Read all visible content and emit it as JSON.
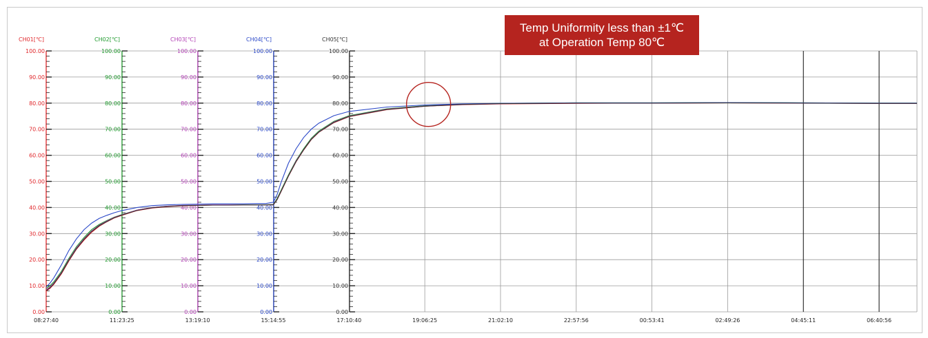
{
  "annotation": {
    "line1": "Temp Uniformity less than ±1℃",
    "line2": "at Operation Temp 80℃",
    "box_color": "#b5241f",
    "circle_color": "#b5241f"
  },
  "chart_data": {
    "type": "line",
    "title": "",
    "xlabel": "",
    "ylabel": "",
    "ylim": [
      0,
      100
    ],
    "grid": true,
    "x_tick_labels": [
      "08:27:40",
      "11:23:25",
      "13:19:10",
      "15:14:55",
      "17:10:40",
      "19:06:25",
      "21:02:10",
      "22:57:56",
      "00:53:41",
      "02:49:26",
      "04:45:11",
      "06:40:56"
    ],
    "y_axes": [
      {
        "name": "CH01[℃]",
        "color": "#e0262a",
        "ticks": [
          "0.00",
          "10.00",
          "20.00",
          "30.00",
          "40.00",
          "50.00",
          "60.00",
          "70.00",
          "80.00",
          "90.00",
          "100.00"
        ]
      },
      {
        "name": "CH02[℃]",
        "color": "#1f9a2d",
        "ticks": [
          "0.00",
          "10.00",
          "20.00",
          "30.00",
          "40.00",
          "50.00",
          "60.00",
          "70.00",
          "80.00",
          "90.00",
          "100.00"
        ]
      },
      {
        "name": "CH03[℃]",
        "color": "#b23fb5",
        "ticks": [
          "0.00",
          "10.00",
          "20.00",
          "30.00",
          "40.00",
          "50.00",
          "60.00",
          "70.00",
          "80.00",
          "90.00",
          "100.00"
        ]
      },
      {
        "name": "CH04[℃]",
        "color": "#2a48c8",
        "ticks": [
          "0.00",
          "10.00",
          "20.00",
          "30.00",
          "40.00",
          "50.00",
          "60.00",
          "70.00",
          "80.00",
          "90.00",
          "100.00"
        ]
      },
      {
        "name": "CH05[℃]",
        "color": "#333333",
        "ticks": [
          "0.00",
          "10.00",
          "20.00",
          "30.00",
          "40.00",
          "50.00",
          "60.00",
          "70.00",
          "80.00",
          "90.00",
          "100.00"
        ]
      }
    ],
    "x": [
      0,
      0.05,
      0.1,
      0.2,
      0.3,
      0.4,
      0.5,
      0.6,
      0.7,
      0.8,
      0.9,
      1.0,
      1.2,
      1.4,
      1.6,
      1.8,
      2.0,
      2.2,
      2.4,
      2.6,
      2.8,
      2.9,
      3.0,
      3.05,
      3.1,
      3.2,
      3.3,
      3.4,
      3.5,
      3.6,
      3.8,
      4.0,
      4.5,
      5.0,
      5.5,
      6.0,
      7.0,
      8.0,
      9.0,
      10.0,
      11.0,
      11.5
    ],
    "series": [
      {
        "name": "CH01[℃]",
        "color": "#e0262a",
        "values": [
          8.0,
          9.0,
          10.5,
          14.5,
          19.5,
          24.0,
          27.5,
          30.5,
          32.8,
          34.5,
          36.0,
          37.0,
          38.8,
          39.8,
          40.3,
          40.6,
          40.8,
          40.9,
          40.9,
          41.0,
          41.0,
          41.0,
          41.0,
          43.0,
          46.0,
          52.0,
          57.5,
          62.0,
          66.0,
          68.8,
          72.5,
          74.8,
          77.5,
          78.8,
          79.4,
          79.7,
          79.9,
          80.0,
          80.1,
          80.0,
          79.9,
          79.9
        ]
      },
      {
        "name": "CH02[℃]",
        "color": "#1f9a2d",
        "values": [
          9.0,
          10.0,
          11.5,
          15.5,
          20.5,
          25.0,
          28.5,
          31.5,
          33.5,
          35.0,
          36.3,
          37.3,
          39.0,
          40.0,
          40.5,
          40.7,
          40.9,
          41.0,
          41.0,
          41.0,
          41.0,
          41.0,
          41.2,
          43.5,
          46.5,
          52.5,
          58.0,
          62.5,
          66.5,
          69.3,
          73.0,
          75.2,
          77.8,
          79.0,
          79.6,
          79.9,
          80.1,
          80.1,
          80.2,
          80.1,
          80.0,
          80.0
        ]
      },
      {
        "name": "CH03[℃]",
        "color": "#b23fb5",
        "values": [
          8.5,
          9.5,
          11.0,
          15.0,
          20.0,
          24.5,
          28.0,
          31.0,
          33.2,
          34.8,
          36.2,
          37.2,
          39.0,
          40.0,
          40.5,
          40.8,
          40.9,
          41.0,
          41.0,
          41.0,
          41.0,
          41.0,
          41.1,
          43.2,
          46.2,
          52.2,
          57.8,
          62.2,
          66.2,
          69.0,
          72.8,
          75.0,
          77.7,
          78.9,
          79.5,
          79.8,
          80.0,
          80.0,
          80.1,
          80.0,
          79.9,
          79.9
        ]
      },
      {
        "name": "CH04[℃]",
        "color": "#2a48c8",
        "values": [
          9.5,
          11.0,
          13.0,
          18.0,
          23.5,
          28.0,
          31.5,
          34.0,
          35.8,
          37.0,
          38.0,
          38.8,
          40.0,
          40.7,
          41.0,
          41.2,
          41.3,
          41.4,
          41.4,
          41.4,
          41.5,
          41.5,
          42.0,
          45.0,
          49.5,
          57.0,
          62.5,
          66.8,
          70.0,
          72.3,
          75.2,
          76.8,
          78.5,
          79.3,
          79.7,
          79.9,
          80.1,
          80.1,
          80.2,
          80.1,
          80.0,
          80.0
        ]
      },
      {
        "name": "CH05[℃]",
        "color": "#333333",
        "values": [
          8.2,
          9.2,
          10.8,
          14.8,
          19.8,
          24.2,
          27.8,
          30.8,
          33.0,
          34.6,
          36.1,
          37.1,
          38.9,
          39.9,
          40.4,
          40.7,
          40.8,
          40.9,
          40.9,
          41.0,
          41.0,
          41.0,
          41.0,
          43.1,
          46.1,
          52.1,
          57.6,
          62.1,
          66.1,
          68.9,
          72.6,
          74.9,
          77.6,
          78.8,
          79.5,
          79.8,
          80.0,
          80.0,
          80.1,
          80.0,
          79.9,
          79.9
        ]
      }
    ]
  }
}
